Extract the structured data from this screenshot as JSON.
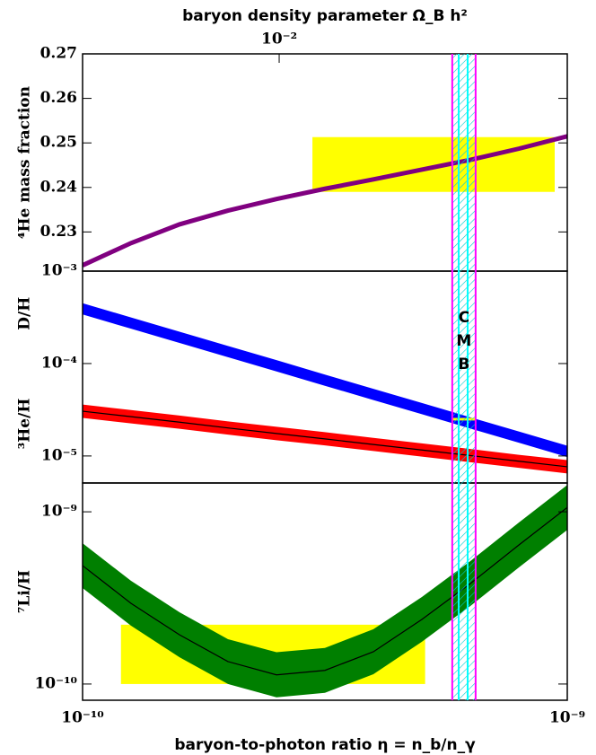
{
  "chart_data": [
    {
      "type": "band",
      "ylabel": "⁴He mass fraction",
      "x2label": "baryon density parameter Ω_B h²",
      "x2lim": [
        0.00393,
        0.0393
      ],
      "x2ticks": [
        {
          "value": 0.01,
          "label": "10⁻²"
        }
      ],
      "xlim": [
        1e-10,
        1e-09
      ],
      "xscale": "log",
      "ylim": [
        0.2212,
        0.27
      ],
      "yticks": [
        0.23,
        0.24,
        0.25,
        0.26,
        0.27
      ],
      "x": [
        1e-10,
        1.259e-10,
        1.585e-10,
        1.995e-10,
        2.512e-10,
        3.162e-10,
        3.981e-10,
        5.012e-10,
        6.31e-10,
        7.943e-10,
        1e-09
      ],
      "series": [
        {
          "color": "#800080",
          "values": [
            0.2225,
            0.2275,
            0.2317,
            0.2348,
            0.2374,
            0.2397,
            0.2418,
            0.244,
            0.2462,
            0.2487,
            0.2515
          ]
        }
      ],
      "regions": [
        {
          "xlim": [
            2.98e-10,
            9.42e-10
          ],
          "ylim": [
            0.239,
            0.2513
          ],
          "color": "#ffff00"
        }
      ],
      "cmb": {
        "outer": [
          5.79e-10,
          6.47e-10
        ],
        "inner": [
          5.97e-10,
          6.23e-10
        ],
        "outer_color": "#ff00ff",
        "inner_color": "#00ffff"
      }
    },
    {
      "type": "band",
      "ylabels": [
        "D/H",
        "³He/H"
      ],
      "annotation": "CMB",
      "xlim": [
        1e-10,
        1e-09
      ],
      "xscale": "log",
      "ylim": [
        5.1e-06,
        0.001
      ],
      "yscale": "log",
      "yticks": [
        {
          "value": 0.001,
          "label": "10⁻³"
        },
        {
          "value": 0.0001,
          "label": "10⁻⁴"
        },
        {
          "value": 1e-05,
          "label": "10⁻⁵"
        }
      ],
      "x": [
        1e-10,
        1.259e-10,
        1.585e-10,
        1.995e-10,
        2.512e-10,
        3.162e-10,
        3.981e-10,
        5.012e-10,
        6.31e-10,
        7.943e-10,
        1e-09
      ],
      "series": [
        {
          "color": "#0000ff",
          "values": [
            0.000391,
            0.000274,
            0.000192,
            0.000135,
            9.44e-05,
            6.61e-05,
            4.63e-05,
            3.25e-05,
            2.28e-05,
            1.6e-05,
            1.12e-05
          ],
          "lower": [
            0.00034,
            0.000238,
            0.000167,
            0.000117,
            8.21e-05,
            5.75e-05,
            4.03e-05,
            2.83e-05,
            1.98e-05,
            1.39e-05,
            9.74e-06
          ],
          "upper": [
            0.00045,
            0.000315,
            0.000221,
            0.000155,
            0.000109,
            7.6e-05,
            5.32e-05,
            3.74e-05,
            2.62e-05,
            1.84e-05,
            1.29e-05
          ]
        },
        {
          "color": "#ff0000",
          "line_color": "#000000",
          "values": [
            3.05e-05,
            2.66e-05,
            2.32e-05,
            2.01e-05,
            1.75e-05,
            1.53e-05,
            1.33e-05,
            1.16e-05,
            1.01e-05,
            8.77e-06,
            7.64e-06
          ],
          "lower": [
            2.58e-05,
            2.25e-05,
            1.97e-05,
            1.7e-05,
            1.48e-05,
            1.3e-05,
            1.13e-05,
            9.83e-06,
            8.56e-06,
            7.43e-06,
            6.47e-06
          ],
          "upper": [
            3.6e-05,
            3.14e-05,
            2.74e-05,
            2.37e-05,
            2.07e-05,
            1.81e-05,
            1.57e-05,
            1.37e-05,
            1.19e-05,
            1.03e-05,
            9.02e-06
          ]
        }
      ],
      "regions": [
        {
          "xlim": [
            5.79e-10,
            6.47e-10
          ],
          "ylim": [
            2.42e-05,
            2.58e-05
          ],
          "color": "#ffff00",
          "front": true
        }
      ]
    },
    {
      "type": "band",
      "ylabel": "⁷Li/H",
      "xlabel": "baryon-to-photon ratio η = n_b/n_γ",
      "xlim": [
        1e-10,
        1e-09
      ],
      "xscale": "log",
      "xticks": [
        {
          "value": 1e-10,
          "label": "10⁻¹⁰"
        },
        {
          "value": 1e-09,
          "label": "10⁻⁹"
        }
      ],
      "ylim": [
        8.05e-11,
        1.47e-09
      ],
      "yscale": "log",
      "yticks": [
        {
          "value": 1e-09,
          "label": "10⁻⁹"
        },
        {
          "value": 1e-10,
          "label": "10⁻¹⁰"
        }
      ],
      "x": [
        1e-10,
        1.259e-10,
        1.585e-10,
        1.995e-10,
        2.512e-10,
        3.162e-10,
        3.981e-10,
        5.012e-10,
        6.31e-10,
        7.943e-10,
        1e-09
      ],
      "series": [
        {
          "color": "#007f00",
          "line_color": "#000000",
          "values": [
            4.87e-10,
            2.94e-10,
            1.93e-10,
            1.35e-10,
            1.13e-10,
            1.2e-10,
            1.54e-10,
            2.37e-10,
            3.83e-10,
            6.41e-10,
            1.06e-09
          ],
          "lower": [
            3.61e-10,
            2.18e-10,
            1.43e-10,
            1e-10,
            8.37e-11,
            8.89e-11,
            1.14e-10,
            1.76e-10,
            2.84e-10,
            4.75e-10,
            7.85e-10
          ],
          "upper": [
            6.57e-10,
            3.97e-10,
            2.61e-10,
            1.82e-10,
            1.53e-10,
            1.62e-10,
            2.08e-10,
            3.2e-10,
            5.17e-10,
            8.65e-10,
            1.43e-09
          ]
        }
      ],
      "regions": [
        {
          "xlim": [
            1.2e-10,
            5.09e-10
          ],
          "ylim": [
            1e-10,
            2.21e-10
          ],
          "color": "#ffff00"
        }
      ]
    }
  ]
}
